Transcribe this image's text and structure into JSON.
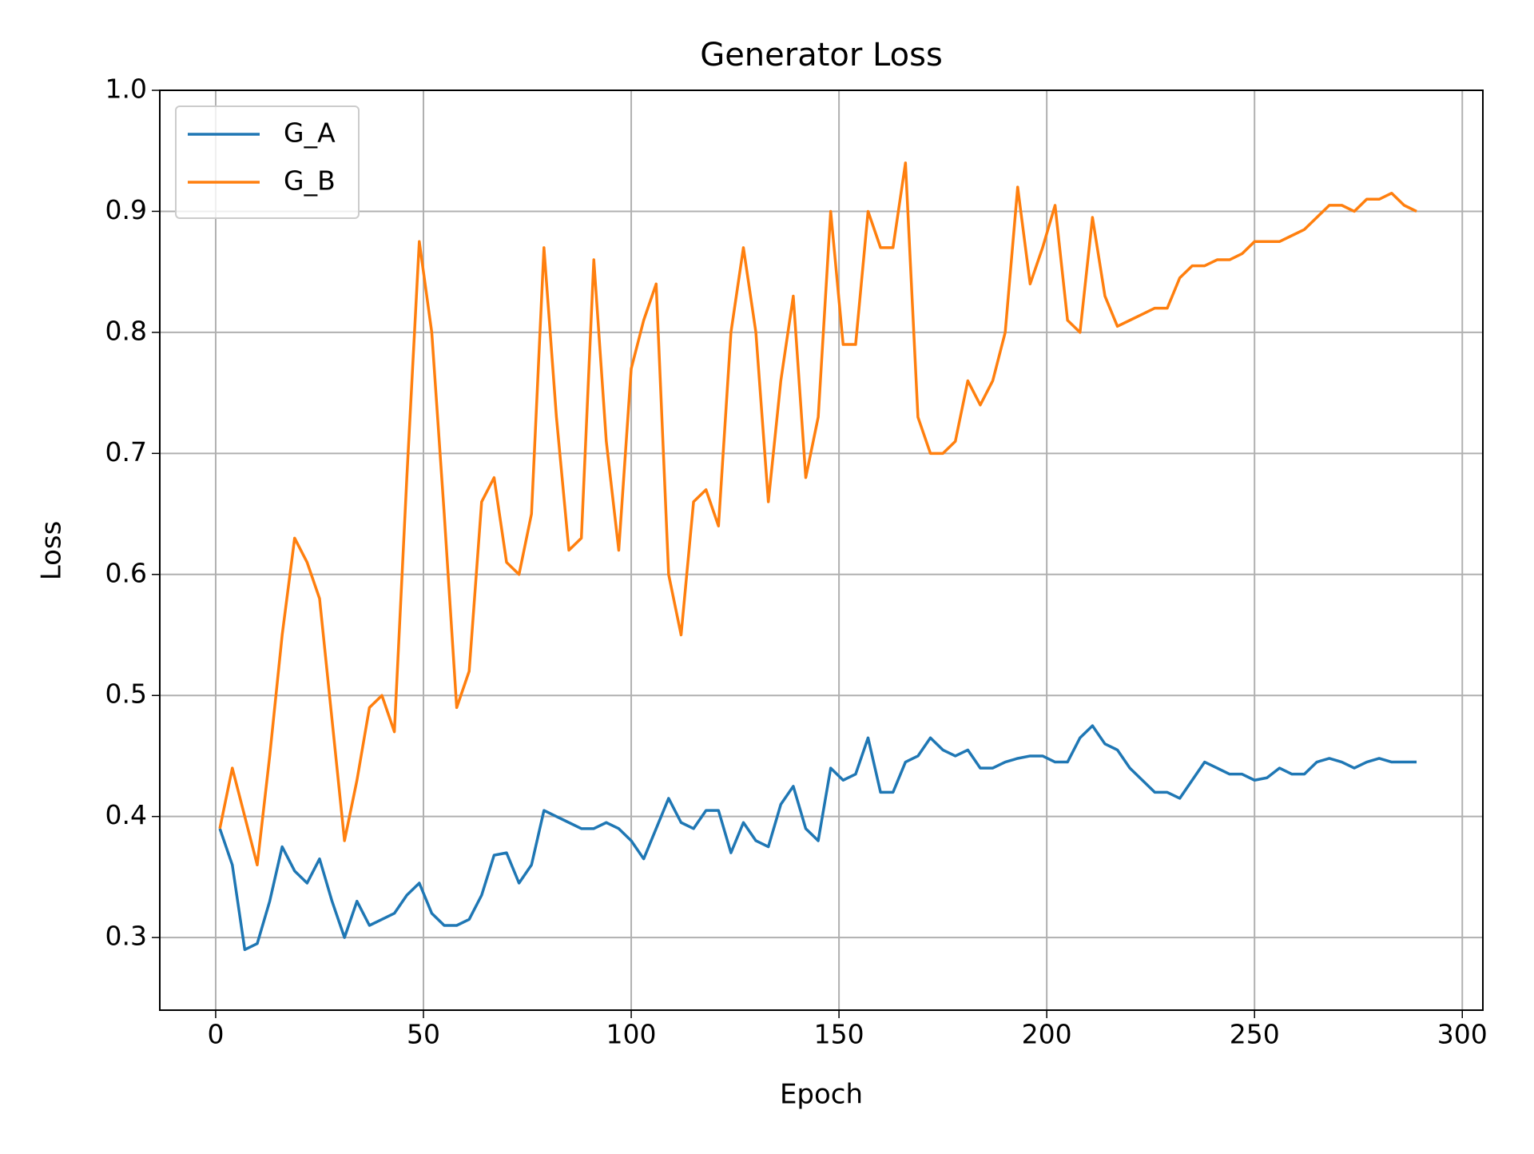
{
  "chart_data": {
    "type": "line",
    "title": "Generator Loss",
    "x_label": "Epoch",
    "y_label": "Loss",
    "x": [
      1,
      4,
      7,
      10,
      13,
      16,
      19,
      22,
      25,
      28,
      31,
      34,
      37,
      40,
      43,
      46,
      49,
      52,
      55,
      58,
      61,
      64,
      67,
      70,
      73,
      76,
      79,
      82,
      85,
      88,
      91,
      94,
      97,
      100,
      103,
      106,
      109,
      112,
      115,
      118,
      121,
      124,
      127,
      130,
      133,
      136,
      139,
      142,
      145,
      148,
      151,
      154,
      157,
      160,
      163,
      166,
      169,
      172,
      175,
      178,
      181,
      184,
      187,
      190,
      193,
      196,
      199,
      202,
      205,
      208,
      211,
      214,
      217,
      220,
      223,
      226,
      229,
      232,
      235,
      238,
      241,
      244,
      247,
      250,
      253,
      256,
      259,
      262,
      265,
      268,
      271,
      274,
      277,
      280,
      283,
      286,
      289
    ],
    "series": [
      {
        "name": "G_A",
        "color": "#1f77b4",
        "values": [
          0.39,
          0.36,
          0.29,
          0.295,
          0.33,
          0.375,
          0.355,
          0.345,
          0.365,
          0.33,
          0.3,
          0.33,
          0.31,
          0.315,
          0.32,
          0.335,
          0.345,
          0.32,
          0.31,
          0.31,
          0.315,
          0.335,
          0.368,
          0.37,
          0.345,
          0.36,
          0.405,
          0.4,
          0.395,
          0.39,
          0.39,
          0.395,
          0.39,
          0.38,
          0.365,
          0.39,
          0.415,
          0.395,
          0.39,
          0.405,
          0.405,
          0.37,
          0.395,
          0.38,
          0.375,
          0.41,
          0.425,
          0.39,
          0.38,
          0.44,
          0.43,
          0.435,
          0.465,
          0.42,
          0.42,
          0.445,
          0.45,
          0.465,
          0.455,
          0.45,
          0.455,
          0.44,
          0.44,
          0.445,
          0.448,
          0.45,
          0.45,
          0.445,
          0.445,
          0.465,
          0.475,
          0.46,
          0.455,
          0.44,
          0.43,
          0.42,
          0.42,
          0.415,
          0.43,
          0.445,
          0.44,
          0.435,
          0.435,
          0.43,
          0.432,
          0.44,
          0.435,
          0.435,
          0.445,
          0.448,
          0.445,
          0.44,
          0.445,
          0.448,
          0.445,
          0.445,
          0.445
        ]
      },
      {
        "name": "G_B",
        "color": "#ff7f0e",
        "values": [
          0.39,
          0.44,
          0.4,
          0.36,
          0.45,
          0.55,
          0.63,
          0.61,
          0.58,
          0.48,
          0.38,
          0.43,
          0.49,
          0.5,
          0.47,
          0.68,
          0.875,
          0.8,
          0.65,
          0.49,
          0.52,
          0.66,
          0.68,
          0.61,
          0.6,
          0.65,
          0.87,
          0.73,
          0.62,
          0.63,
          0.86,
          0.71,
          0.62,
          0.77,
          0.81,
          0.84,
          0.6,
          0.55,
          0.66,
          0.67,
          0.64,
          0.8,
          0.87,
          0.8,
          0.66,
          0.76,
          0.83,
          0.68,
          0.73,
          0.9,
          0.79,
          0.79,
          0.9,
          0.87,
          0.87,
          0.94,
          0.73,
          0.7,
          0.7,
          0.71,
          0.76,
          0.74,
          0.76,
          0.8,
          0.92,
          0.84,
          0.87,
          0.905,
          0.81,
          0.8,
          0.895,
          0.83,
          0.805,
          0.81,
          0.815,
          0.82,
          0.82,
          0.845,
          0.855,
          0.855,
          0.86,
          0.86,
          0.865,
          0.875,
          0.875,
          0.875,
          0.88,
          0.885,
          0.895,
          0.905,
          0.905,
          0.9,
          0.91,
          0.91,
          0.915,
          0.905,
          0.9
        ]
      }
    ],
    "xlim": [
      -13.45,
      304.95
    ],
    "ylim": [
      0.24,
      1.0
    ],
    "xticks": [
      0,
      50,
      100,
      150,
      200,
      250,
      300
    ],
    "yticks": [
      0.3,
      0.4,
      0.5,
      0.6,
      0.7,
      0.8,
      0.9,
      {
        "value": 1,
        "label": "1.0"
      }
    ],
    "grid": true,
    "legend": "upper left"
  }
}
